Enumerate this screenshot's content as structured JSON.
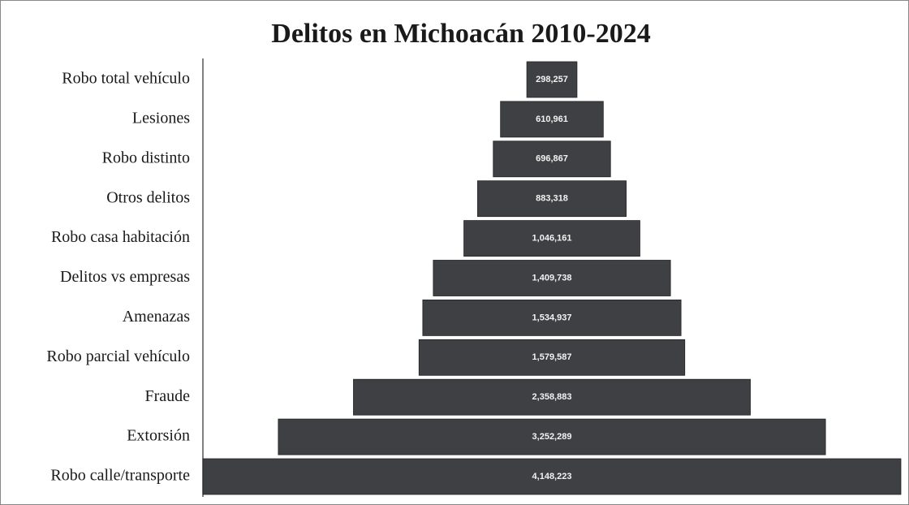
{
  "chart_data": {
    "type": "funnel",
    "title": "Delitos en Michoacán 2010-2024",
    "categories": [
      "Robo total vehículo",
      "Lesiones",
      "Robo distinto",
      "Otros delitos",
      "Robo casa habitación",
      "Delitos vs empresas",
      "Amenazas",
      "Robo parcial vehículo",
      "Fraude",
      "Extorsión",
      "Robo calle/transporte"
    ],
    "values": [
      298257,
      610961,
      696867,
      883318,
      1046161,
      1409738,
      1534937,
      1579587,
      2358883,
      3252289,
      4148223
    ],
    "value_labels": [
      "298,257",
      "610,961",
      "696,867",
      "883,318",
      "1,046,161",
      "1,409,738",
      "1,534,937",
      "1,579,587",
      "2,358,883",
      "3,252,289",
      "4,148,223"
    ],
    "color": "#3e4043"
  }
}
